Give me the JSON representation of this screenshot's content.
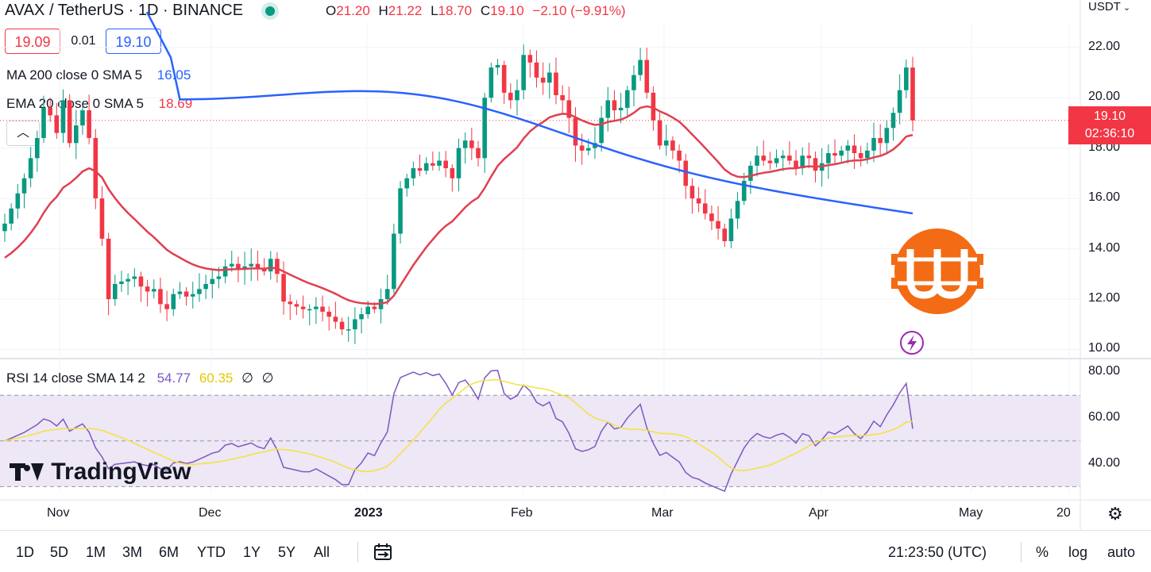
{
  "header": {
    "symbol": "AVAX / TetherUS · 1D · BINANCE",
    "ohlc": [
      {
        "k": "O",
        "v": "21.20"
      },
      {
        "k": "H",
        "v": "21.22"
      },
      {
        "k": "L",
        "v": "18.70"
      },
      {
        "k": "C",
        "v": "19.10"
      }
    ],
    "change": "−2.10 (−9.91%)",
    "currency": "USDT"
  },
  "prices": {
    "sell": "19.09",
    "spread": "0.01",
    "buy": "19.10"
  },
  "indicators": {
    "ma_label": "MA 200 close 0 SMA 5",
    "ma_value": "16.05",
    "ema_label": "EMA 20 close 0 SMA 5",
    "ema_value": "18.69",
    "rsi_label": "RSI 14 close SMA 14 2",
    "rsi_value": "54.77",
    "rsi_sma_value": "60.35",
    "rsi_extra1": "∅",
    "rsi_extra2": "∅"
  },
  "price_tag": {
    "price": "19.10",
    "countdown": "02:36:10"
  },
  "brand": {
    "name": "TradingView"
  },
  "colors": {
    "up": "#089981",
    "down": "#f23645",
    "ma200": "#2962ff",
    "ema20": "#e0404f",
    "rsi": "#7e57c2",
    "rsi_sma": "#f5e23b",
    "rsi_band": "#ede7f6",
    "overlay_logo": "#f36b14"
  },
  "bottom": {
    "timeframes": [
      "1D",
      "5D",
      "1M",
      "3M",
      "6M",
      "YTD",
      "1Y",
      "5Y",
      "All"
    ],
    "clock": "21:23:50 (UTC)",
    "percent": "%",
    "log": "log",
    "auto": "auto"
  },
  "chart_data": {
    "type": "candlestick",
    "price_axis_labels": [
      "22.00",
      "20.00",
      "18.00",
      "16.00",
      "14.00",
      "12.00",
      "10.00"
    ],
    "price_range": [
      9.7,
      23.0
    ],
    "rsi_axis_labels": [
      "80.00",
      "60.00",
      "40.00"
    ],
    "rsi_range": [
      27,
      85
    ],
    "rsi_band": [
      30,
      70
    ],
    "time_labels": [
      "Nov",
      "Dec",
      "2023",
      "Feb",
      "Mar",
      "Apr",
      "May",
      "20"
    ],
    "grid": true,
    "series_close": [
      15.0,
      15.6,
      16.2,
      16.8,
      17.6,
      18.4,
      19.6,
      19.3,
      18.6,
      19.9,
      18.2,
      18.9,
      19.5,
      18.4,
      16.0,
      14.4,
      12.0,
      12.6,
      12.7,
      12.8,
      12.9,
      12.5,
      12.3,
      12.4,
      11.8,
      11.6,
      12.2,
      12.3,
      12.1,
      12.2,
      12.4,
      12.6,
      12.8,
      12.9,
      13.3,
      13.4,
      13.2,
      13.3,
      13.4,
      13.2,
      13.1,
      13.6,
      13.0,
      11.9,
      11.8,
      11.7,
      11.6,
      11.6,
      11.7,
      11.5,
      11.3,
      11.1,
      10.8,
      10.8,
      11.2,
      11.4,
      11.7,
      11.6,
      12.0,
      12.4,
      14.6,
      16.4,
      16.8,
      17.2,
      17.1,
      17.4,
      17.3,
      17.5,
      17.2,
      16.8,
      18.0,
      18.3,
      18.0,
      17.6,
      20.0,
      21.2,
      21.3,
      20.2,
      19.9,
      20.3,
      21.7,
      21.4,
      20.8,
      20.6,
      21.0,
      20.1,
      19.9,
      19.2,
      18.1,
      17.9,
      18.0,
      18.2,
      19.2,
      19.9,
      19.5,
      19.6,
      20.3,
      20.9,
      21.5,
      20.2,
      19.1,
      18.1,
      18.3,
      17.9,
      17.5,
      16.5,
      16.0,
      15.8,
      15.4,
      15.1,
      14.8,
      14.3,
      15.2,
      15.9,
      16.7,
      17.3,
      17.7,
      17.5,
      17.4,
      17.6,
      17.7,
      17.5,
      17.2,
      17.7,
      17.6,
      17.1,
      17.4,
      17.8,
      17.7,
      17.9,
      18.1,
      17.8,
      17.6,
      17.9,
      18.4,
      18.2,
      18.8,
      19.4,
      20.3,
      21.2,
      19.1
    ],
    "series_ema20_last": 18.69,
    "series_ma200_last": 16.05,
    "rsi_last": 54.77,
    "rsi_sma_last": 60.35
  }
}
